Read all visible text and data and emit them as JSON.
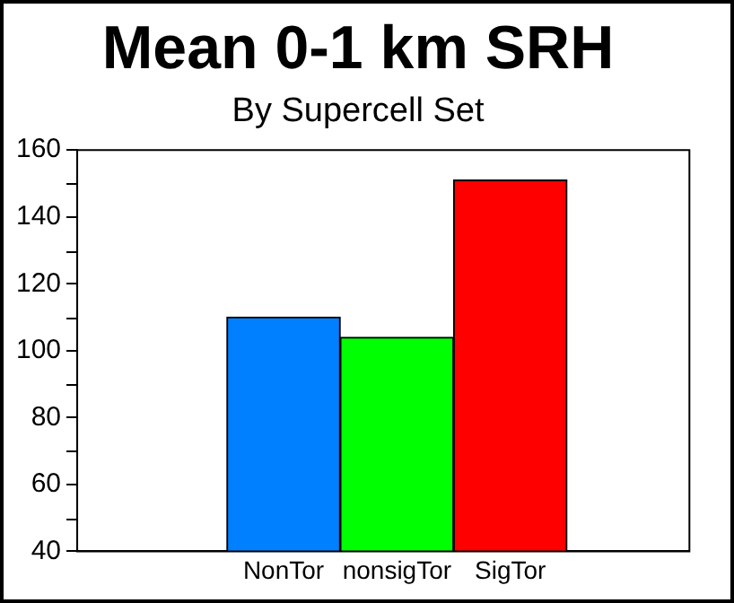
{
  "chart_data": {
    "type": "bar",
    "title": "Mean 0-1 km SRH",
    "subtitle": "By Supercell Set",
    "categories": [
      "NonTor",
      "nonsigTor",
      "SigTor"
    ],
    "values": [
      110,
      104,
      151
    ],
    "colors": [
      "#0080ff",
      "#00ff00",
      "#ff0000"
    ],
    "ylim": [
      40,
      160
    ],
    "yticks": [
      40,
      60,
      80,
      100,
      120,
      140,
      160
    ]
  }
}
